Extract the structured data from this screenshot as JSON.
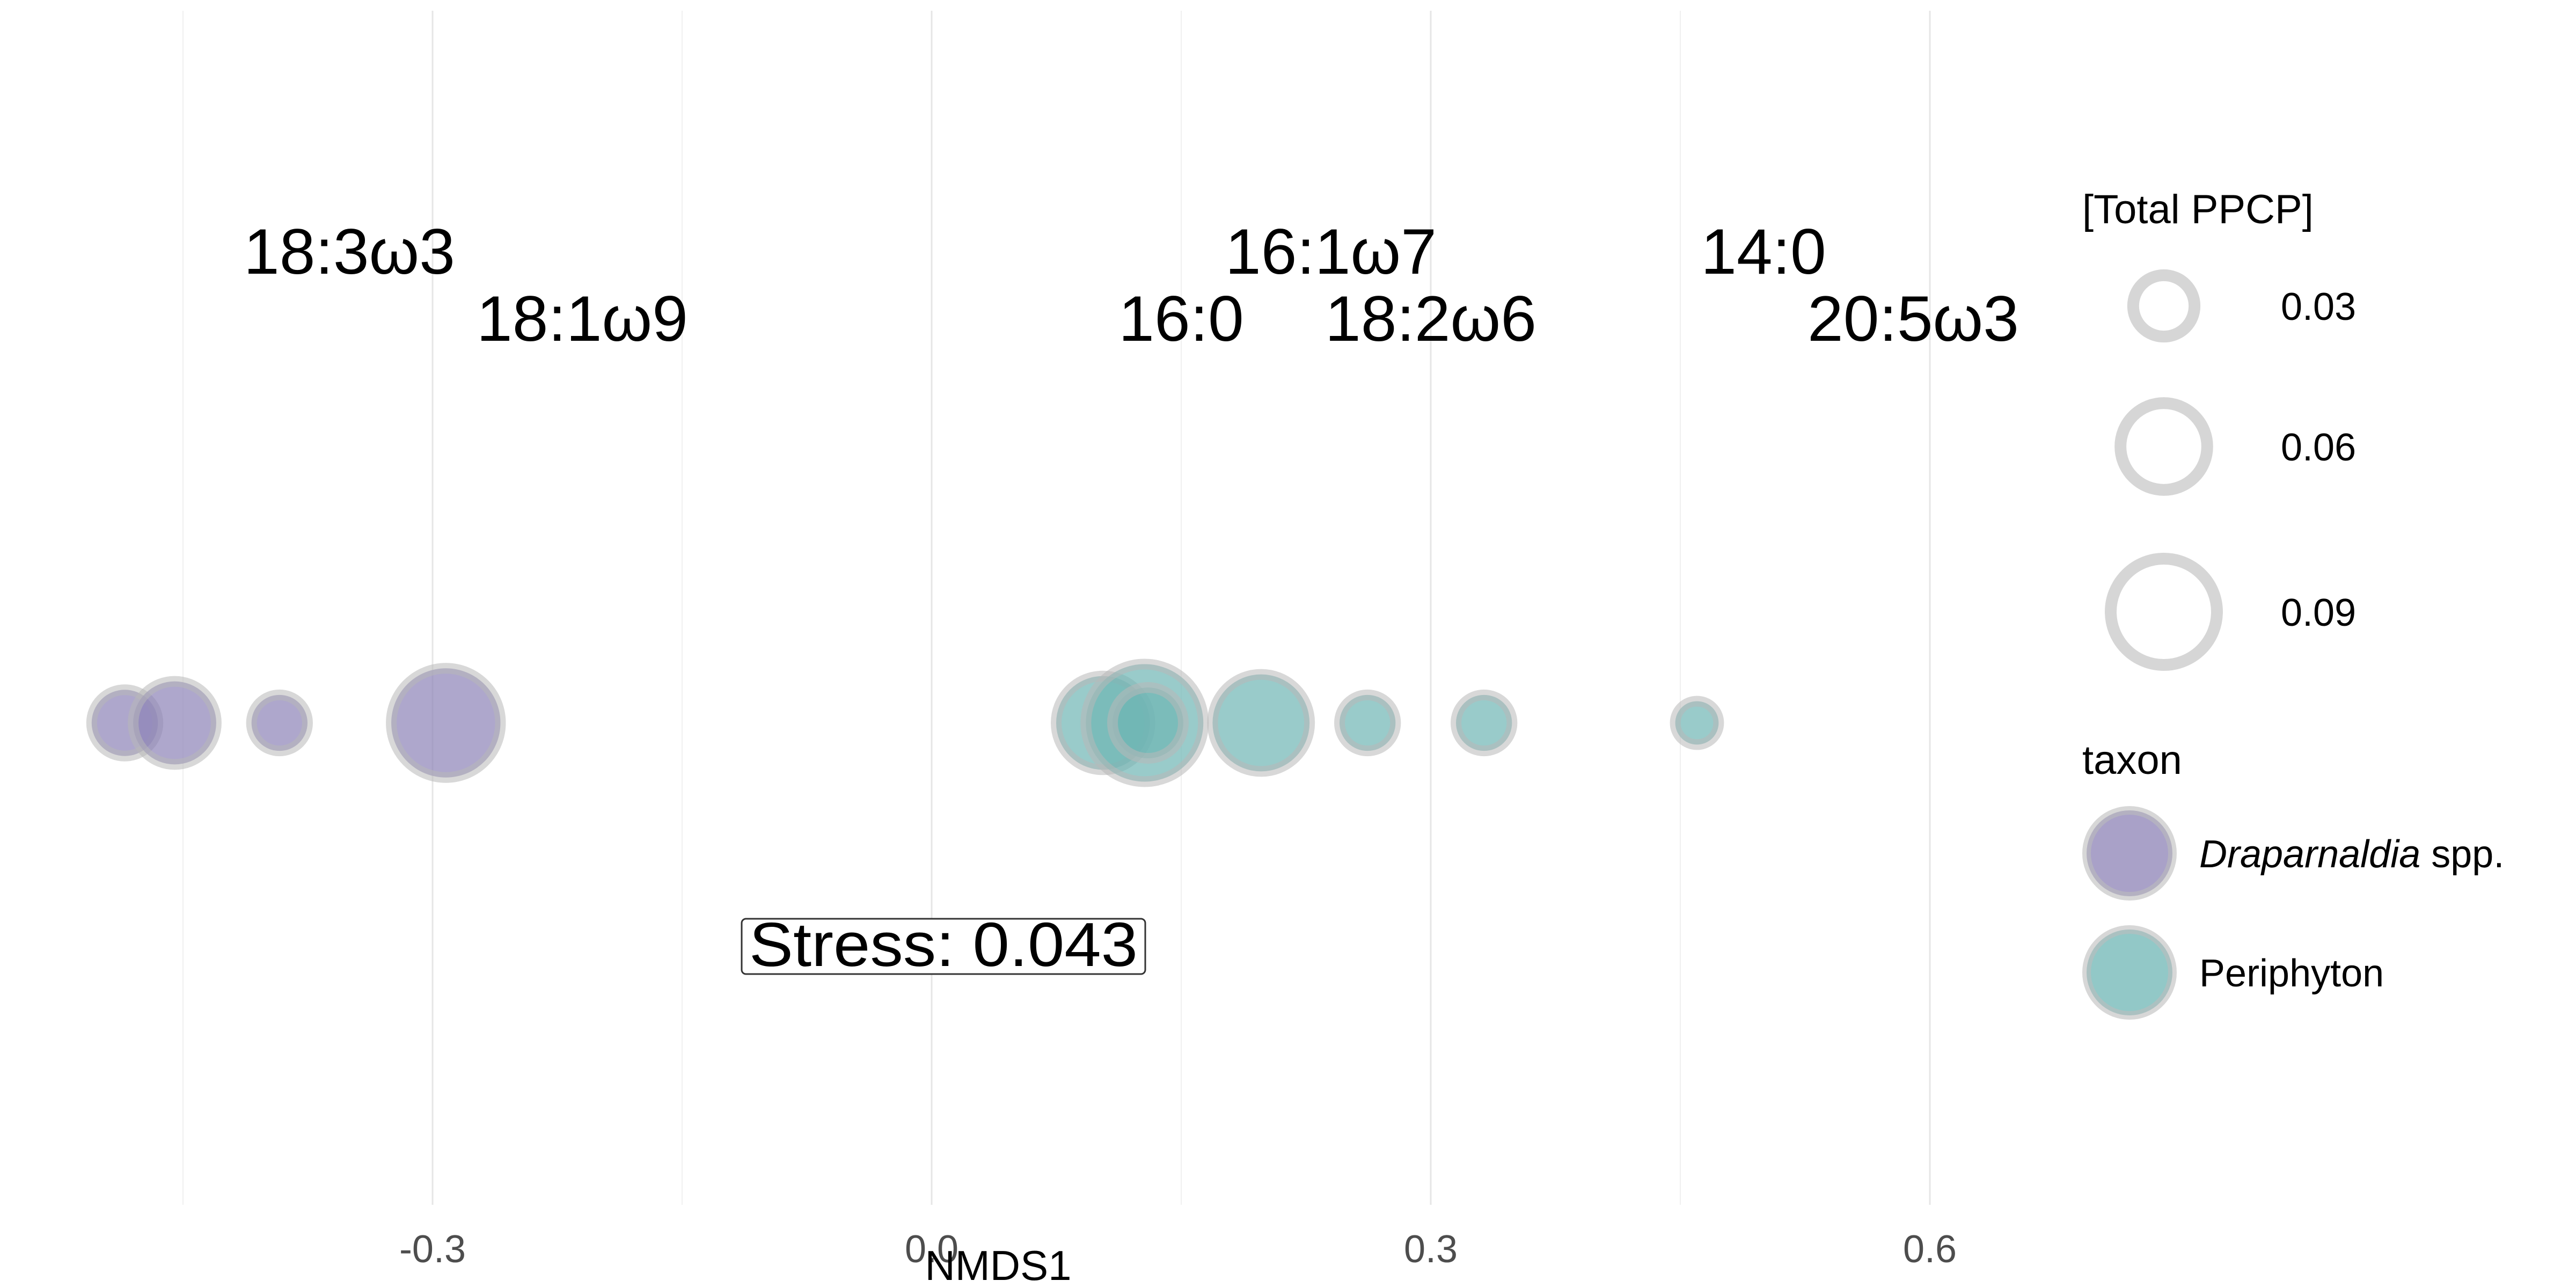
{
  "chart_data": {
    "type": "scatter",
    "xlabel": "NMDS1",
    "xlim": [
      -0.56,
      0.64
    ],
    "x_ticks": [
      "-0.3",
      "0.0",
      "0.3",
      "0.6"
    ],
    "x_tick_values": [
      -0.3,
      0.0,
      0.3,
      0.6
    ],
    "x_minor_grid": [
      -0.45,
      -0.15,
      0.15,
      0.45
    ],
    "grid": true,
    "stress_label": "Stress:  0.043",
    "fatty_acid_labels": [
      {
        "label": "18:3ω3",
        "x": -0.35,
        "row": 1
      },
      {
        "label": "18:1ω9",
        "x": -0.21,
        "row": 2
      },
      {
        "label": "16:1ω7",
        "x": 0.24,
        "row": 1
      },
      {
        "label": "16:0",
        "x": 0.15,
        "row": 2
      },
      {
        "label": "18:2ω6",
        "x": 0.3,
        "row": 2
      },
      {
        "label": "14:0",
        "x": 0.5,
        "row": 1
      },
      {
        "label": "20:5ω3",
        "x": 0.59,
        "row": 2
      }
    ],
    "series": [
      {
        "name": "Draparnaldia spp.",
        "color": "#8C82B6",
        "points": [
          {
            "x": -0.485,
            "size": 0.035
          },
          {
            "x": -0.455,
            "size": 0.055
          },
          {
            "x": -0.392,
            "size": 0.025
          },
          {
            "x": -0.292,
            "size": 0.095
          }
        ]
      },
      {
        "name": "Periphyton",
        "color": "#6DB5B4",
        "points": [
          {
            "x": 0.103,
            "size": 0.07
          },
          {
            "x": 0.128,
            "size": 0.11
          },
          {
            "x": 0.13,
            "size": 0.04
          },
          {
            "x": 0.198,
            "size": 0.075
          },
          {
            "x": 0.262,
            "size": 0.025
          },
          {
            "x": 0.332,
            "size": 0.025
          },
          {
            "x": 0.46,
            "size": 0.015
          }
        ]
      }
    ],
    "legend": {
      "size_title": "[Total PPCP]",
      "size_breaks": [
        {
          "label": "0.03",
          "value": 0.03
        },
        {
          "label": "0.06",
          "value": 0.06
        },
        {
          "label": "0.09",
          "value": 0.09
        }
      ],
      "color_title": "taxon",
      "color_entries": [
        {
          "italic": "Draparnaldia",
          "rest": " spp.",
          "color": "#8C82B6"
        },
        {
          "italic": "",
          "rest": "Periphyton",
          "color": "#6DB5B4"
        }
      ]
    }
  }
}
